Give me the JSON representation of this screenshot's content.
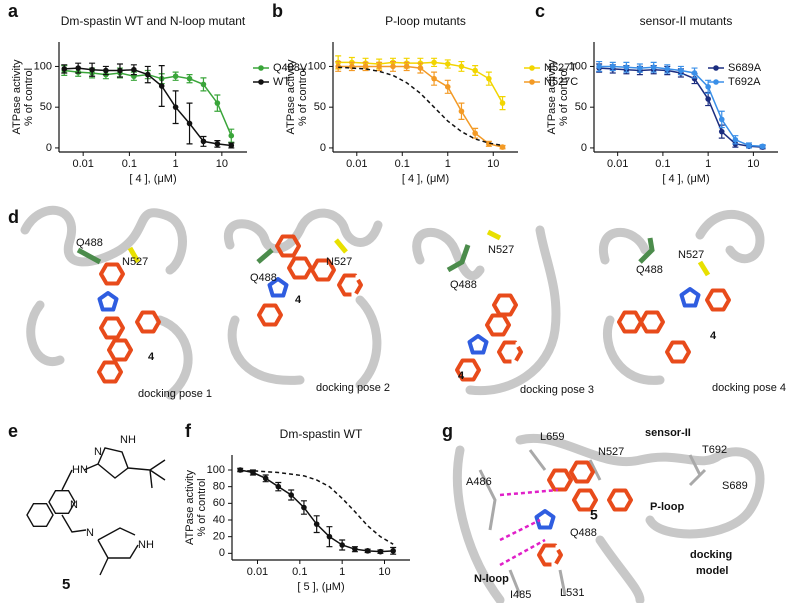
{
  "panel_labels": [
    "a",
    "b",
    "c",
    "d",
    "e",
    "f",
    "g"
  ],
  "chart_data": [
    {
      "type": "line",
      "title": "Dm-spastin WT and N-loop mutant",
      "xlabel": "[ 4 ], (μM)",
      "ylabel": [
        "ATPase activity",
        "% of control"
      ],
      "log_x": true,
      "xlim": [
        0.003,
        35
      ],
      "xticks": [
        0.01,
        0.1,
        1,
        10
      ],
      "ylim": [
        -5,
        130
      ],
      "yticks": [
        0,
        50,
        100
      ],
      "legend": "right",
      "x": [
        0.0039,
        0.0078,
        0.0156,
        0.031,
        0.0625,
        0.125,
        0.25,
        0.5,
        1,
        2,
        4,
        8,
        16
      ],
      "series": [
        {
          "name": "Q488V",
          "color": "#3aa53a",
          "values": [
            95,
            93,
            92,
            90,
            92,
            88,
            90,
            85,
            88,
            85,
            78,
            55,
            15
          ],
          "errors": [
            6,
            5,
            6,
            5,
            6,
            5,
            5,
            6,
            5,
            5,
            8,
            10,
            8
          ]
        },
        {
          "name": "WT",
          "color": "#111111",
          "values": [
            97,
            98,
            96,
            95,
            95,
            96,
            90,
            76,
            50,
            30,
            8,
            5,
            3
          ],
          "errors": [
            5,
            6,
            8,
            5,
            8,
            6,
            10,
            25,
            20,
            25,
            6,
            4,
            3
          ]
        }
      ]
    },
    {
      "type": "line",
      "title": "P-loop mutants",
      "xlabel": "[ 4 ], (μM)",
      "ylabel": [
        "ATPase activity",
        "% of control"
      ],
      "log_x": true,
      "xlim": [
        0.003,
        35
      ],
      "xticks": [
        0.01,
        0.1,
        1,
        10
      ],
      "ylim": [
        -5,
        130
      ],
      "yticks": [
        0,
        50,
        100
      ],
      "legend": "right",
      "x": [
        0.0039,
        0.0078,
        0.0156,
        0.031,
        0.0625,
        0.125,
        0.25,
        0.5,
        1,
        2,
        4,
        8,
        16
      ],
      "series": [
        {
          "name": "N527T",
          "color": "#f2d500",
          "values": [
            105,
            105,
            104,
            103,
            105,
            104,
            104,
            105,
            103,
            100,
            95,
            85,
            55
          ],
          "errors": [
            8,
            6,
            6,
            6,
            5,
            6,
            6,
            5,
            5,
            6,
            6,
            8,
            8
          ]
        },
        {
          "name": "N527C",
          "color": "#f39a25",
          "values": [
            100,
            100,
            100,
            100,
            100,
            100,
            98,
            85,
            75,
            45,
            18,
            5,
            1
          ],
          "errors": [
            6,
            5,
            5,
            5,
            6,
            5,
            6,
            8,
            8,
            10,
            6,
            3,
            2
          ]
        },
        {
          "color": "#111111",
          "dashed": true,
          "values": [
            99,
            98,
            97,
            94,
            89,
            80,
            67,
            50,
            33,
            20,
            11,
            6,
            3
          ]
        }
      ]
    },
    {
      "type": "line",
      "title": "sensor-II mutants",
      "xlabel": "[ 4 ], (μM)",
      "ylabel": [
        "ATPase activity",
        "% of control"
      ],
      "log_x": true,
      "xlim": [
        0.003,
        35
      ],
      "xticks": [
        0.01,
        0.1,
        1,
        10
      ],
      "ylim": [
        -5,
        130
      ],
      "yticks": [
        0,
        50,
        100
      ],
      "legend": "upper-right",
      "x": [
        0.0039,
        0.0078,
        0.0156,
        0.031,
        0.0625,
        0.125,
        0.25,
        0.5,
        1,
        2,
        4,
        8,
        16
      ],
      "series": [
        {
          "name": "S689A",
          "color": "#1c2e80",
          "values": [
            98,
            97,
            96,
            95,
            96,
            95,
            92,
            85,
            60,
            20,
            5,
            2,
            1
          ],
          "errors": [
            5,
            5,
            5,
            5,
            5,
            5,
            5,
            6,
            8,
            8,
            4,
            2,
            2
          ]
        },
        {
          "name": "T692A",
          "color": "#3a8fe8",
          "values": [
            100,
            100,
            99,
            98,
            99,
            97,
            95,
            92,
            75,
            35,
            10,
            3,
            2
          ],
          "errors": [
            6,
            5,
            6,
            5,
            6,
            5,
            5,
            6,
            8,
            10,
            5,
            3,
            2
          ]
        }
      ]
    },
    {
      "type": "line",
      "title": "Dm-spastin WT",
      "xlabel": "[ 5 ], (μM)",
      "ylabel": [
        "ATPase activity",
        "% of control"
      ],
      "log_x": true,
      "xlim": [
        0.0025,
        40
      ],
      "xticks": [
        0.01,
        0.1,
        1,
        10
      ],
      "ylim": [
        -8,
        118
      ],
      "yticks": [
        0,
        20,
        40,
        60,
        80,
        100
      ],
      "x": [
        0.0039,
        0.0078,
        0.0156,
        0.031,
        0.0625,
        0.125,
        0.25,
        0.5,
        1,
        2,
        4,
        8,
        16
      ],
      "series": [
        {
          "color": "#111111",
          "values": [
            100,
            97,
            90,
            80,
            70,
            55,
            35,
            20,
            10,
            5,
            3,
            2,
            3
          ],
          "errors": [
            2,
            3,
            4,
            5,
            6,
            8,
            10,
            12,
            6,
            3,
            2,
            2,
            4
          ]
        },
        {
          "color": "#111111",
          "dashed": true,
          "values": [
            99,
            99,
            98,
            97,
            95,
            93,
            88,
            80,
            66,
            50,
            33,
            20,
            11
          ]
        }
      ]
    }
  ],
  "docking_poses": [
    {
      "labels": [
        "Q488",
        "N527",
        "4"
      ],
      "caption": "docking pose 1"
    },
    {
      "labels": [
        "Q488",
        "N527",
        "4"
      ],
      "caption": "docking pose 2"
    },
    {
      "labels": [
        "Q488",
        "N527",
        "4"
      ],
      "caption": "docking pose 3"
    },
    {
      "labels": [
        "Q488",
        "N527",
        "4"
      ],
      "caption": "docking pose 4"
    }
  ],
  "compound_5": {
    "atoms": [
      "HN",
      "N",
      "NH",
      "N",
      "N",
      "NH"
    ],
    "name": "5"
  },
  "docking_model": {
    "labels": [
      "L659",
      "sensor-II",
      "T692",
      "N527",
      "S689",
      "A486",
      "5",
      "P-loop",
      "Q488",
      "N-loop",
      "I485",
      "L531"
    ],
    "caption": [
      "docking",
      "model"
    ]
  }
}
